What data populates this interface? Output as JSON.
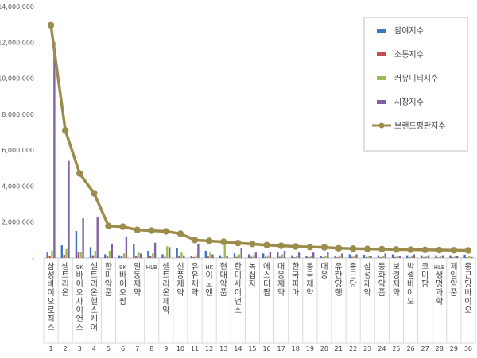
{
  "chart_data": {
    "type": "bar",
    "title": "",
    "xlabel": "",
    "ylabel": "",
    "ylim": [
      0,
      14000000
    ],
    "yticks": [
      0,
      2000000,
      4000000,
      6000000,
      8000000,
      10000000,
      12000000,
      14000000
    ],
    "ytick_labels": [
      "-",
      "2,000,000",
      "4,000,000",
      "6,000,000",
      "8,000,000",
      "10,000,000",
      "12,000,000",
      "14,000,000"
    ],
    "grid": false,
    "legend_position": "top-right",
    "ranks": [
      "1",
      "2",
      "3",
      "4",
      "5",
      "6",
      "7",
      "8",
      "9",
      "10",
      "11",
      "12",
      "13",
      "14",
      "15",
      "16",
      "17",
      "18",
      "19",
      "20",
      "21",
      "22",
      "23",
      "24",
      "25",
      "26",
      "27",
      "28",
      "29",
      "30"
    ],
    "categories": [
      "삼성바이오로직스",
      "셀트리온",
      "SK바이오사이언스",
      "셀트리온헬스케어",
      "한미약품",
      "SK바이오팜",
      "일동제약",
      "HLB",
      "셀트리온제약",
      "신풍제약",
      "유유제약",
      "HK이노엔",
      "현대약품",
      "한미사이언스",
      "녹십자",
      "에스티팜",
      "대웅제약",
      "한국파마",
      "동국제약",
      "대웅",
      "유한양행",
      "종근당",
      "삼성제약",
      "동화약품",
      "보령제약",
      "박셀바이오",
      "코미팜",
      "HLB생명과학",
      "제일약품",
      "종근당바이오"
    ],
    "series": [
      {
        "name": "참여지수",
        "color": "#4472C4",
        "kind": "bar",
        "values": [
          300000,
          700000,
          1500000,
          600000,
          200000,
          150000,
          750000,
          400000,
          200000,
          550000,
          100000,
          400000,
          150000,
          250000,
          200000,
          250000,
          300000,
          150000,
          100000,
          120000,
          100000,
          200000,
          180000,
          150000,
          200000,
          150000,
          150000,
          150000,
          150000,
          180000
        ]
      },
      {
        "name": "소통지수",
        "color": "#C0504D",
        "kind": "bar",
        "values": [
          120000,
          180000,
          300000,
          150000,
          80000,
          80000,
          120000,
          100000,
          60000,
          100000,
          50000,
          80000,
          40000,
          60000,
          60000,
          60000,
          60000,
          40000,
          40000,
          40000,
          40000,
          60000,
          50000,
          40000,
          50000,
          40000,
          40000,
          30000,
          40000,
          40000
        ]
      },
      {
        "name": "커뮤니티지수",
        "color": "#9BBB59",
        "kind": "bar",
        "values": [
          400000,
          500000,
          350000,
          400000,
          400000,
          250000,
          350000,
          250000,
          650000,
          300000,
          150000,
          300000,
          750000,
          200000,
          150000,
          150000,
          200000,
          100000,
          100000,
          100000,
          150000,
          100000,
          100000,
          100000,
          100000,
          100000,
          80000,
          80000,
          80000,
          100000
        ]
      },
      {
        "name": "시장지수",
        "color": "#8064A2",
        "kind": "bar",
        "values": [
          12000000,
          5400000,
          2200000,
          2300000,
          800000,
          1200000,
          250000,
          850000,
          600000,
          150000,
          800000,
          200000,
          100000,
          550000,
          300000,
          350000,
          400000,
          300000,
          300000,
          300000,
          250000,
          200000,
          100000,
          250000,
          100000,
          200000,
          150000,
          150000,
          100000,
          50000
        ]
      },
      {
        "name": "브랜드평판지수",
        "color": "#9C8C4C",
        "kind": "line",
        "values": [
          12950000,
          7100000,
          4700000,
          3600000,
          1780000,
          1740000,
          1560000,
          1520000,
          1480000,
          1350000,
          1000000,
          950000,
          900000,
          830000,
          780000,
          720000,
          680000,
          640000,
          610000,
          590000,
          540000,
          520000,
          500000,
          490000,
          470000,
          460000,
          450000,
          440000,
          430000,
          420000
        ]
      }
    ]
  }
}
